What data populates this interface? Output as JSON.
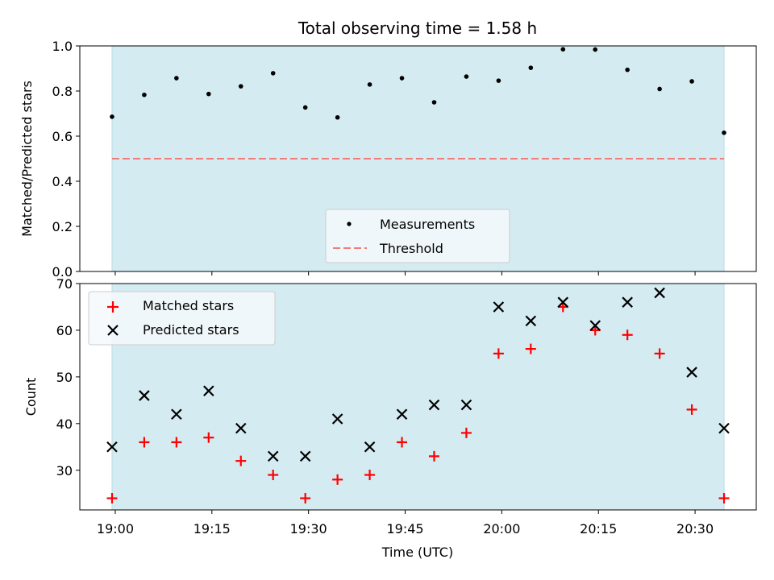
{
  "chart_data": {
    "type": "scatter",
    "title": "Total observing time = 1.58 h",
    "xlabel": "Time (UTC)",
    "x_tick_labels": [
      "19:00",
      "19:15",
      "19:30",
      "19:45",
      "20:00",
      "20:15",
      "20:30"
    ],
    "x_ticks_minutes": [
      0,
      15,
      30,
      45,
      60,
      75,
      90
    ],
    "x_range_minutes": [
      -5.5,
      99.5
    ],
    "x_times": [
      "18:59",
      "19:04",
      "19:09",
      "19:14",
      "19:19",
      "19:24",
      "19:29",
      "19:34",
      "19:39",
      "19:44",
      "19:49",
      "19:54",
      "19:59",
      "20:04",
      "20:09",
      "20:14",
      "20:19",
      "20:24",
      "20:29",
      "20:34"
    ],
    "x_minutes": [
      -0.5,
      4.5,
      9.5,
      14.5,
      19.5,
      24.5,
      29.5,
      34.5,
      39.5,
      44.5,
      49.5,
      54.5,
      59.5,
      64.5,
      69.5,
      74.5,
      79.5,
      84.5,
      89.5,
      94.5
    ],
    "shaded_span_minutes": [
      -0.5,
      94.5
    ],
    "shade_color": "#d4ebf1",
    "top": {
      "ylabel": "Matched/Predicted stars",
      "ylim": [
        0.0,
        1.0
      ],
      "y_ticks": [
        "0.0",
        "0.2",
        "0.4",
        "0.6",
        "0.8",
        "1.0"
      ],
      "threshold": 0.5,
      "threshold_color": "#f07c7c",
      "legend_position": "lower-center",
      "legend": [
        {
          "label": "Measurements",
          "marker": "dot"
        },
        {
          "label": "Threshold",
          "marker": "dashed-line"
        }
      ],
      "series": [
        {
          "name": "Measurements",
          "values": [
            0.686,
            0.783,
            0.857,
            0.787,
            0.821,
            0.879,
            0.727,
            0.683,
            0.829,
            0.857,
            0.75,
            0.864,
            0.846,
            0.903,
            0.985,
            0.984,
            0.894,
            0.809,
            0.843,
            0.615
          ]
        }
      ]
    },
    "bottom": {
      "ylabel": "Count",
      "ylim": [
        21.5,
        70
      ],
      "y_ticks": [
        "30",
        "40",
        "50",
        "60",
        "70"
      ],
      "legend_position": "upper-left",
      "legend": [
        {
          "label": "Matched stars",
          "marker": "plus",
          "color": "#ff0000"
        },
        {
          "label": "Predicted stars",
          "marker": "x",
          "color": "#000000"
        }
      ],
      "series": [
        {
          "name": "Matched stars",
          "color": "#ff0000",
          "values": [
            24,
            36,
            36,
            37,
            32,
            29,
            24,
            28,
            29,
            36,
            33,
            38,
            55,
            56,
            65,
            60,
            59,
            55,
            43,
            24
          ]
        },
        {
          "name": "Predicted stars",
          "color": "#000000",
          "values": [
            35,
            46,
            42,
            47,
            39,
            33,
            33,
            41,
            35,
            42,
            44,
            44,
            65,
            62,
            66,
            61,
            66,
            68,
            51,
            39
          ]
        }
      ]
    }
  }
}
